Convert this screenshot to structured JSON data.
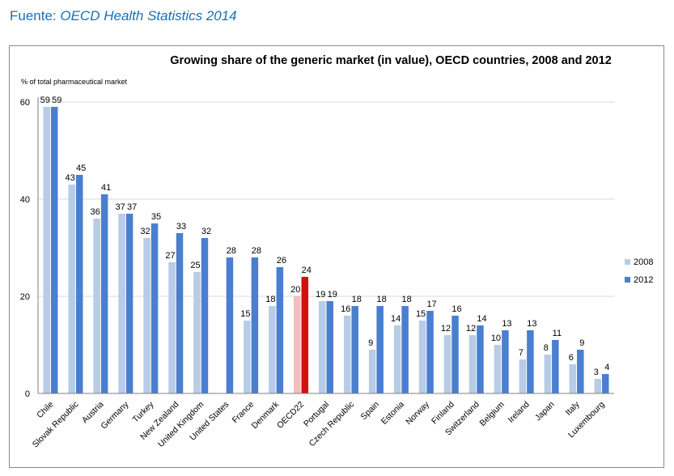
{
  "source": {
    "prefix": "Fuente: ",
    "name": "OECD Health Statistics 2014"
  },
  "colors": {
    "series_2008": "#b7cce6",
    "series_2012": "#4a7fd0",
    "oecd_2008": "#f4bcbc",
    "oecd_2012": "#d40f0f",
    "gridline": "#d9d9d9",
    "axis": "#7f7f7f",
    "source_text": "#1a6fb5"
  },
  "chart_data": {
    "type": "bar",
    "title": "Growing share of the generic market (in value), OECD countries, 2008 and 2012",
    "ylabel": "% of total pharmaceutical market",
    "xlabel": "",
    "ylim": [
      0,
      60
    ],
    "yticks": [
      0,
      20,
      40,
      60
    ],
    "grid": true,
    "legend_position": "right",
    "highlight_category": "OECD22",
    "categories": [
      "Chile",
      "Slovak Republic",
      "Austria",
      "Germany",
      "Turkey",
      "New Zealand",
      "United Kingdom",
      "United States",
      "France",
      "Denmark",
      "OECD22",
      "Portugal",
      "Czech Republic",
      "Spain",
      "Estonia",
      "Norway",
      "Finland",
      "Switzerland",
      "Belgium",
      "Ireland",
      "Japan",
      "Italy",
      "Luxembourg"
    ],
    "series": [
      {
        "name": "2008",
        "values": [
          59,
          43,
          36,
          37,
          32,
          27,
          25,
          null,
          15,
          18,
          20,
          19,
          16,
          9,
          14,
          15,
          12,
          12,
          10,
          7,
          8,
          6,
          3
        ]
      },
      {
        "name": "2012",
        "values": [
          59,
          45,
          41,
          37,
          35,
          33,
          32,
          28,
          28,
          26,
          24,
          19,
          18,
          18,
          18,
          17,
          16,
          14,
          13,
          13,
          11,
          9,
          4
        ]
      }
    ]
  }
}
